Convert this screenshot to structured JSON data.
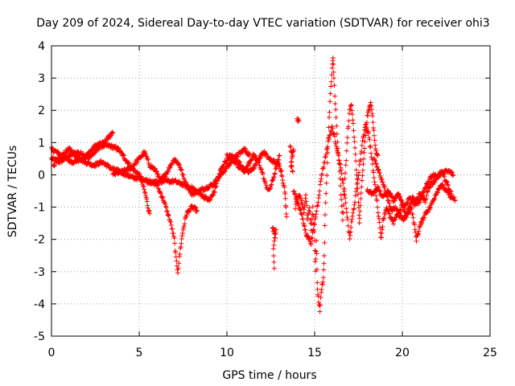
{
  "chart_data": {
    "type": "scatter",
    "title": "Day 209 of 2024, Sidereal Day-to-day VTEC variation (SDTVAR) for receiver ohi3",
    "xlabel": "GPS time / hours",
    "ylabel": "SDTVAR / TECUs",
    "xlim": [
      0,
      25
    ],
    "ylim": [
      -5,
      4
    ],
    "xticks": [
      0,
      5,
      10,
      15,
      20,
      25
    ],
    "yticks": [
      -5,
      -4,
      -3,
      -2,
      -1,
      0,
      1,
      2,
      3,
      4
    ],
    "grid": true,
    "marker": "+",
    "series": [
      {
        "name": "SDTVAR",
        "color": "#ff0000",
        "keypoints": [
          [
            [
              0.0,
              0.5
            ],
            [
              0.5,
              0.4
            ],
            [
              1.0,
              0.6
            ],
            [
              1.5,
              0.7
            ],
            [
              2.0,
              0.6
            ],
            [
              2.5,
              0.9
            ],
            [
              3.0,
              1.0
            ],
            [
              3.3,
              1.2
            ],
            [
              3.5,
              1.3
            ]
          ],
          [
            [
              0.0,
              0.8
            ],
            [
              0.3,
              0.7
            ],
            [
              0.8,
              0.5
            ],
            [
              1.2,
              0.4
            ],
            [
              1.8,
              0.5
            ],
            [
              2.3,
              0.6
            ],
            [
              2.8,
              0.9
            ],
            [
              3.3,
              0.9
            ],
            [
              3.8,
              0.8
            ],
            [
              4.2,
              0.5
            ],
            [
              4.6,
              0.2
            ],
            [
              5.0,
              0.0
            ],
            [
              5.2,
              -0.3
            ],
            [
              5.4,
              -0.7
            ],
            [
              5.5,
              -1.0
            ],
            [
              5.6,
              -1.2
            ]
          ],
          [
            [
              0.1,
              0.3
            ],
            [
              0.6,
              0.6
            ],
            [
              1.0,
              0.8
            ],
            [
              1.4,
              0.6
            ],
            [
              1.9,
              0.4
            ],
            [
              2.4,
              0.3
            ],
            [
              2.9,
              0.4
            ],
            [
              3.4,
              0.2
            ],
            [
              3.9,
              0.1
            ],
            [
              4.3,
              0.0
            ],
            [
              4.7,
              -0.1
            ],
            [
              5.1,
              -0.1
            ],
            [
              5.5,
              -0.2
            ],
            [
              6.0,
              -0.3
            ],
            [
              6.4,
              -0.8
            ],
            [
              6.8,
              -1.5
            ],
            [
              7.0,
              -2.0
            ],
            [
              7.1,
              -2.6
            ],
            [
              7.2,
              -3.0
            ],
            [
              7.35,
              -2.3
            ],
            [
              7.5,
              -1.7
            ],
            [
              7.7,
              -1.2
            ],
            [
              8.0,
              -1.0
            ],
            [
              8.3,
              -1.1
            ]
          ],
          [
            [
              3.5,
              0.0
            ],
            [
              4.0,
              0.1
            ],
            [
              4.5,
              0.2
            ],
            [
              5.0,
              0.5
            ],
            [
              5.3,
              0.7
            ],
            [
              5.6,
              0.3
            ],
            [
              6.0,
              0.1
            ],
            [
              6.2,
              -0.2
            ],
            [
              6.6,
              0.1
            ],
            [
              7.0,
              0.5
            ],
            [
              7.3,
              0.3
            ],
            [
              7.6,
              -0.2
            ],
            [
              8.0,
              -0.6
            ],
            [
              8.4,
              -0.5
            ],
            [
              8.8,
              -0.4
            ],
            [
              9.2,
              -0.3
            ],
            [
              9.5,
              -0.1
            ],
            [
              9.8,
              0.1
            ],
            [
              10.1,
              0.3
            ],
            [
              10.4,
              0.5
            ],
            [
              10.8,
              0.7
            ],
            [
              11.0,
              0.8
            ],
            [
              11.3,
              0.6
            ]
          ],
          [
            [
              5.6,
              -0.2
            ],
            [
              6.0,
              -0.2
            ],
            [
              6.5,
              -0.2
            ],
            [
              7.0,
              -0.2
            ],
            [
              7.5,
              -0.3
            ],
            [
              8.0,
              -0.4
            ],
            [
              8.5,
              -0.6
            ],
            [
              9.0,
              -0.8
            ],
            [
              9.3,
              -0.5
            ],
            [
              9.6,
              0.1
            ],
            [
              9.9,
              0.4
            ],
            [
              10.2,
              0.6
            ],
            [
              10.5,
              0.5
            ],
            [
              10.8,
              0.3
            ],
            [
              11.0,
              0.1
            ],
            [
              11.2,
              0.3
            ],
            [
              11.5,
              0.6
            ],
            [
              11.8,
              0.4
            ],
            [
              12.0,
              0.1
            ],
            [
              12.2,
              -0.3
            ],
            [
              12.4,
              -0.5
            ],
            [
              12.6,
              -0.2
            ],
            [
              12.8,
              0.2
            ],
            [
              13.0,
              0.6
            ]
          ],
          [
            [
              10.0,
              0.6
            ],
            [
              10.3,
              0.5
            ],
            [
              10.6,
              0.3
            ],
            [
              10.9,
              0.2
            ],
            [
              11.2,
              0.1
            ],
            [
              11.5,
              0.2
            ],
            [
              11.8,
              0.5
            ],
            [
              12.1,
              0.7
            ],
            [
              12.4,
              0.5
            ],
            [
              12.7,
              0.4
            ],
            [
              13.0,
              0.3
            ],
            [
              13.1,
              0.1
            ],
            [
              13.2,
              -0.2
            ],
            [
              13.3,
              -0.5
            ],
            [
              13.35,
              -0.9
            ],
            [
              13.4,
              -1.3
            ]
          ],
          [
            [
              12.6,
              -1.6
            ],
            [
              12.7,
              -1.8
            ],
            [
              12.8,
              -1.7
            ],
            [
              12.65,
              -2.3
            ],
            [
              12.7,
              -2.9
            ]
          ],
          [
            [
              13.6,
              0.9
            ],
            [
              13.7,
              0.7
            ],
            [
              13.8,
              0.8
            ],
            [
              13.7,
              0.5
            ],
            [
              13.65,
              0.3
            ],
            [
              13.75,
              0.1
            ]
          ],
          [
            [
              14.0,
              1.7
            ],
            [
              14.1,
              1.7
            ]
          ],
          [
            [
              13.9,
              -1.0
            ],
            [
              14.1,
              -0.6
            ],
            [
              14.3,
              -0.9
            ],
            [
              14.4,
              -1.2
            ],
            [
              14.5,
              -0.6
            ],
            [
              14.6,
              -1.4
            ],
            [
              14.7,
              -1.0
            ],
            [
              14.8,
              -1.7
            ],
            [
              14.9,
              -1.0
            ],
            [
              15.0,
              -2.0
            ],
            [
              15.05,
              -3.0
            ],
            [
              15.1,
              -2.0
            ],
            [
              15.15,
              -3.4
            ],
            [
              15.2,
              -3.8
            ],
            [
              15.3,
              -4.2
            ],
            [
              15.4,
              -3.5
            ],
            [
              15.5,
              -3.2
            ],
            [
              15.55,
              -2.5
            ],
            [
              15.6,
              -1.2
            ],
            [
              15.7,
              0.0
            ],
            [
              15.8,
              1.5
            ],
            [
              15.9,
              2.5
            ],
            [
              16.0,
              3.3
            ],
            [
              16.05,
              3.6
            ],
            [
              16.1,
              3.0
            ],
            [
              16.2,
              2.0
            ],
            [
              16.3,
              1.0
            ],
            [
              16.4,
              0.3
            ],
            [
              16.5,
              -0.6
            ],
            [
              16.6,
              -1.4
            ],
            [
              16.7,
              -0.4
            ],
            [
              16.8,
              0.5
            ],
            [
              16.9,
              1.4
            ],
            [
              17.0,
              2.0
            ],
            [
              17.1,
              2.2
            ],
            [
              17.2,
              1.6
            ],
            [
              17.3,
              0.8
            ],
            [
              17.4,
              0.0
            ],
            [
              17.5,
              -0.8
            ],
            [
              17.55,
              -1.5
            ],
            [
              17.6,
              -1.0
            ],
            [
              17.7,
              -0.2
            ],
            [
              17.8,
              0.5
            ],
            [
              17.9,
              1.2
            ],
            [
              18.0,
              1.8
            ],
            [
              18.1,
              2.0
            ],
            [
              18.2,
              2.3
            ],
            [
              18.3,
              1.8
            ],
            [
              18.4,
              1.2
            ],
            [
              18.5,
              0.7
            ],
            [
              18.6,
              0.6
            ]
          ],
          [
            [
              13.8,
              -0.5
            ],
            [
              14.0,
              -0.8
            ],
            [
              14.2,
              -1.1
            ],
            [
              14.5,
              -1.8
            ],
            [
              14.8,
              -2.1
            ],
            [
              15.0,
              -1.5
            ],
            [
              15.2,
              -0.8
            ],
            [
              15.4,
              0.0
            ],
            [
              15.6,
              0.5
            ],
            [
              15.8,
              1.1
            ],
            [
              16.0,
              1.5
            ],
            [
              16.2,
              1.0
            ],
            [
              16.4,
              0.5
            ],
            [
              16.6,
              -0.2
            ],
            [
              16.8,
              -1.0
            ],
            [
              17.0,
              -2.0
            ],
            [
              17.1,
              -1.5
            ],
            [
              17.3,
              -0.8
            ],
            [
              17.5,
              0.0
            ],
            [
              17.7,
              0.9
            ],
            [
              17.9,
              1.6
            ],
            [
              18.1,
              1.2
            ],
            [
              18.3,
              0.3
            ],
            [
              18.5,
              -0.6
            ],
            [
              18.7,
              -1.5
            ],
            [
              18.8,
              -2.0
            ],
            [
              18.9,
              -1.4
            ],
            [
              19.1,
              -1.0
            ],
            [
              19.3,
              -1.3
            ],
            [
              19.5,
              -1.5
            ],
            [
              19.7,
              -1.2
            ],
            [
              19.9,
              -1.3
            ],
            [
              20.1,
              -1.4
            ],
            [
              20.3,
              -1.2
            ],
            [
              20.5,
              -1.0
            ],
            [
              20.7,
              -1.6
            ],
            [
              20.8,
              -2.0
            ],
            [
              21.0,
              -1.6
            ],
            [
              21.3,
              -1.2
            ],
            [
              21.6,
              -1.0
            ],
            [
              21.9,
              -0.6
            ],
            [
              22.2,
              -0.3
            ],
            [
              22.5,
              -0.5
            ],
            [
              22.8,
              -0.7
            ]
          ],
          [
            [
              18.0,
              -0.5
            ],
            [
              18.3,
              -0.6
            ],
            [
              18.6,
              -0.4
            ],
            [
              18.9,
              -0.7
            ],
            [
              19.2,
              -0.5
            ],
            [
              19.5,
              -0.8
            ],
            [
              19.8,
              -0.6
            ],
            [
              20.1,
              -1.0
            ],
            [
              20.4,
              -0.7
            ],
            [
              20.7,
              -0.9
            ],
            [
              21.0,
              -0.6
            ],
            [
              21.3,
              -0.8
            ],
            [
              21.5,
              -0.4
            ],
            [
              21.8,
              -0.2
            ],
            [
              22.1,
              0.0
            ],
            [
              22.4,
              0.1
            ],
            [
              22.7,
              0.1
            ],
            [
              22.9,
              0.0
            ]
          ],
          [
            [
              18.4,
              0.5
            ],
            [
              18.6,
              0.2
            ],
            [
              18.8,
              -0.1
            ],
            [
              19.0,
              -0.4
            ],
            [
              19.2,
              -0.8
            ],
            [
              19.4,
              -1.1
            ],
            [
              19.6,
              -1.0
            ],
            [
              19.8,
              -1.2
            ],
            [
              20.0,
              -0.9
            ],
            [
              20.2,
              -1.3
            ],
            [
              20.4,
              -1.0
            ],
            [
              20.6,
              -0.7
            ],
            [
              20.8,
              -0.9
            ],
            [
              21.0,
              -0.8
            ],
            [
              21.2,
              -0.5
            ],
            [
              21.4,
              -0.3
            ],
            [
              21.6,
              -0.1
            ],
            [
              21.8,
              0.0
            ],
            [
              22.0,
              -0.1
            ],
            [
              22.2,
              0.1
            ],
            [
              22.5,
              -0.2
            ],
            [
              22.8,
              -0.6
            ],
            [
              23.0,
              -0.8
            ]
          ]
        ]
      }
    ]
  }
}
